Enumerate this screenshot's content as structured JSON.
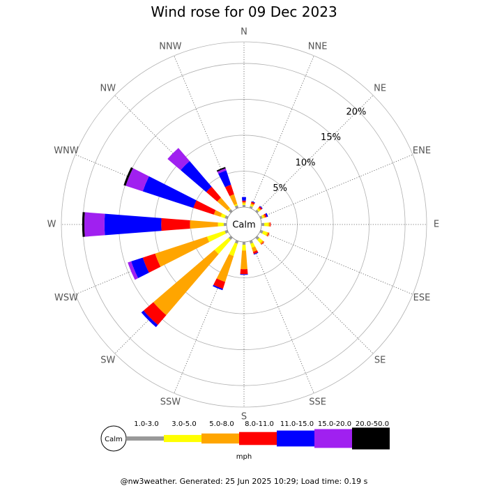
{
  "title": "Wind rose for 09 Dec 2023",
  "footer": "@nw3weather. Generated: 25 Jun 2025 10:29; Load time: 0.19 s",
  "chart_data": {
    "type": "wind-rose",
    "title": "Wind rose for 09 Dec 2023",
    "directions": [
      "N",
      "NNE",
      "NE",
      "ENE",
      "E",
      "ESE",
      "SE",
      "SSE",
      "S",
      "SSW",
      "SW",
      "WSW",
      "W",
      "WNW",
      "NW",
      "NNW"
    ],
    "radial_ticks": [
      "5%",
      "10%",
      "15%",
      "20%"
    ],
    "radial_tick_values": [
      5,
      10,
      15,
      20
    ],
    "radial_max": 23,
    "calm_label": "Calm",
    "units": "mph",
    "speed_bins": [
      {
        "label": "1.0-3.0",
        "color": "#999999"
      },
      {
        "label": "3.0-5.0",
        "color": "#ffff00"
      },
      {
        "label": "5.0-8.0",
        "color": "#ffa500"
      },
      {
        "label": "8.0-11.0",
        "color": "#ff0000"
      },
      {
        "label": "11.0-15.0",
        "color": "#0000ff"
      },
      {
        "label": "15.0-20.0",
        "color": "#a020f0"
      },
      {
        "label": "20.0-50.0",
        "color": "#000000"
      }
    ],
    "cumulative_percent": {
      "N": [
        0.3,
        0.5,
        0.7,
        0.9,
        1.4,
        1.4,
        1.4
      ],
      "NNE": [
        0.3,
        0.5,
        0.7,
        0.9,
        1.0,
        1.0,
        1.0
      ],
      "NE": [
        0.3,
        0.5,
        0.7,
        0.9,
        1.0,
        1.0,
        1.0
      ],
      "ENE": [
        0.3,
        0.5,
        0.7,
        0.9,
        1.1,
        1.1,
        1.1
      ],
      "E": [
        0.4,
        1.0,
        1.2,
        1.3,
        1.3,
        1.3,
        1.3
      ],
      "ESE": [
        0.4,
        1.0,
        1.2,
        1.3,
        1.3,
        1.3,
        1.3
      ],
      "SE": [
        0.4,
        1.0,
        1.2,
        1.3,
        1.3,
        1.3,
        1.3
      ],
      "SSE": [
        0.4,
        1.0,
        1.6,
        1.9,
        2.0,
        2.0,
        2.0
      ],
      "S": [
        0.4,
        1.2,
        3.8,
        4.5,
        4.6,
        4.6,
        4.6
      ],
      "SSW": [
        0.4,
        2.2,
        6.0,
        7.0,
        7.2,
        7.2,
        7.2
      ],
      "SW": [
        0.4,
        3.0,
        14.2,
        16.0,
        16.4,
        16.4,
        16.4
      ],
      "WSW": [
        0.4,
        3.0,
        10.6,
        12.4,
        14.1,
        14.6,
        14.6
      ],
      "W": [
        0.4,
        1.2,
        5.1,
        9.1,
        17.0,
        19.8,
        20.1
      ],
      "WNW": [
        0.4,
        1.0,
        2.0,
        5.0,
        12.4,
        14.9,
        15.2
      ],
      "NW": [
        0.4,
        0.6,
        2.5,
        4.5,
        9.2,
        11.6,
        11.6
      ],
      "NNW": [
        0.4,
        0.6,
        2.0,
        3.4,
        5.5,
        5.8,
        6.0
      ]
    },
    "legend_position": "bottom"
  }
}
